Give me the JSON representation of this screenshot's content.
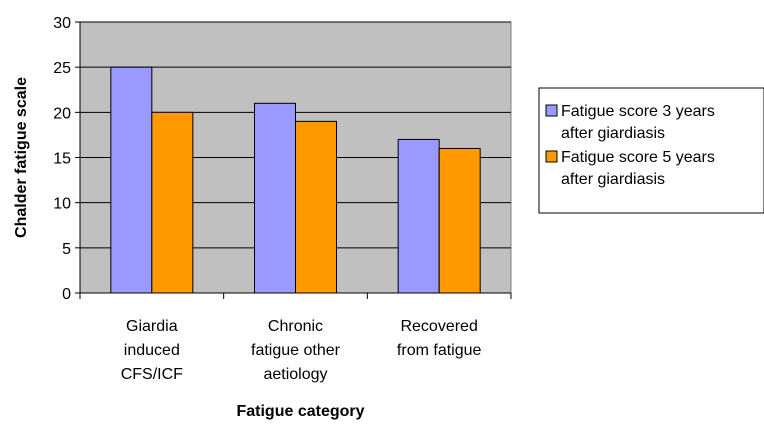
{
  "chart_data": {
    "type": "bar",
    "title": "",
    "xlabel": "Fatigue category",
    "ylabel": "Chalder fatigue scale",
    "ylim": [
      0,
      30
    ],
    "yticks": [
      0,
      5,
      10,
      15,
      20,
      25,
      30
    ],
    "grid": true,
    "legend_position": "right",
    "categories": [
      [
        "Giardia",
        "induced",
        "CFS/ICF"
      ],
      [
        "Chronic",
        "fatigue other",
        "aetiology"
      ],
      [
        "Recovered",
        "from fatigue"
      ]
    ],
    "series": [
      {
        "name": [
          "Fatigue score 3 years",
          "after giardiasis"
        ],
        "color": "#9999ff",
        "values": [
          25,
          21,
          17
        ]
      },
      {
        "name": [
          "Fatigue score 5 years",
          "after giardiasis"
        ],
        "color": "#ff9900",
        "values": [
          20,
          19,
          16
        ]
      }
    ],
    "plot_background": "#c0c0c0"
  }
}
